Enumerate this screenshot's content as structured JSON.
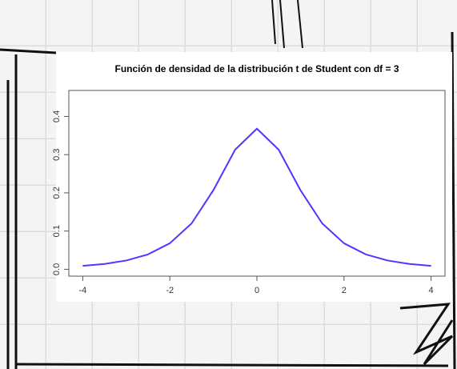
{
  "chart_data": {
    "type": "line",
    "title": "Función de densidad de la distribución t de Student con df = 3",
    "x": [
      -4,
      -3.5,
      -3,
      -2.5,
      -2,
      -1.5,
      -1,
      -0.5,
      0,
      0.5,
      1,
      1.5,
      2,
      2.5,
      3,
      3.5,
      4
    ],
    "series": [
      {
        "color": "#5533ff",
        "values": [
          0.009,
          0.014,
          0.023,
          0.039,
          0.068,
          0.12,
          0.207,
          0.313,
          0.368,
          0.313,
          0.207,
          0.12,
          0.068,
          0.039,
          0.023,
          0.014,
          0.009
        ]
      }
    ],
    "xlim": [
      -4.32,
      4.32
    ],
    "xticks": [
      -4,
      -2,
      0,
      2,
      4
    ],
    "ylim": [
      -0.018,
      0.468
    ],
    "yticks": [
      {
        "value": 0,
        "label": "0.0"
      },
      0.1,
      0.2,
      0.3,
      0.4
    ]
  }
}
